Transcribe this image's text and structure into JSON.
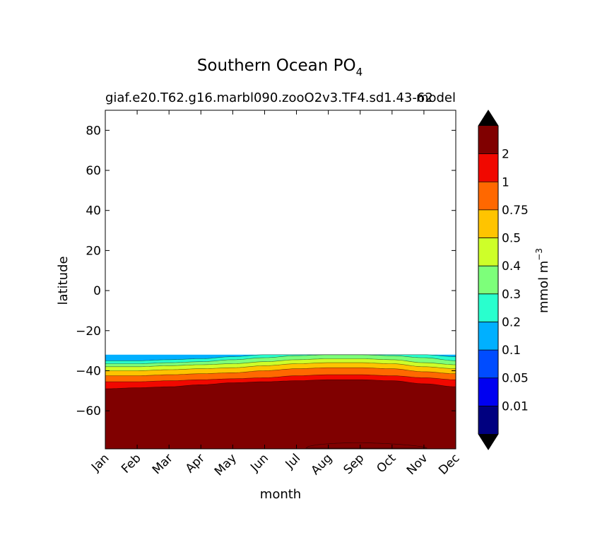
{
  "chart_data": {
    "type": "heatmap",
    "title": "Southern Ocean PO",
    "title_subscript": "4",
    "subtitle_left": "giaf.e20.T62.g16.marbl090.zooO2v3.TF4.sd1.43-62",
    "subtitle_right": "model",
    "xlabel": "month",
    "ylabel": "latitude",
    "x_categories": [
      "Jan",
      "Feb",
      "Mar",
      "Apr",
      "May",
      "Jun",
      "Jul",
      "Aug",
      "Sep",
      "Oct",
      "Nov",
      "Dec"
    ],
    "ylim": [
      -79,
      90
    ],
    "yticks": [
      80,
      60,
      40,
      20,
      0,
      -20,
      -40,
      -60
    ],
    "ytick_labels": [
      "80",
      "60",
      "40",
      "20",
      "0",
      "−20",
      "−40",
      "−60"
    ],
    "data_ylim": [
      -79,
      -32
    ],
    "colorbar": {
      "label": "mmol m",
      "label_superscript": "−3",
      "levels": [
        0,
        0.01,
        0.05,
        0.1,
        0.2,
        0.3,
        0.4,
        0.5,
        0.75,
        1,
        2,
        3
      ],
      "tick_labels": [
        "0.01",
        "0.05",
        "0.1",
        "0.2",
        "0.3",
        "0.4",
        "0.5",
        "0.75",
        "1",
        "2"
      ],
      "colors": [
        "#000080",
        "#0000f1",
        "#004cff",
        "#00b0ff",
        "#29ffce",
        "#7dff7a",
        "#ceff29",
        "#ffc400",
        "#ff6800",
        "#f10800",
        "#800000"
      ],
      "extend_low_color": "#000000",
      "extend_high_color": "#000000"
    },
    "contour_boundaries": [
      {
        "level": 0.2,
        "lat_by_month": [
          -35.0,
          -35.0,
          -34.5,
          -34.0,
          -33.0,
          -32.0,
          -32.0,
          -32.0,
          -32.0,
          -32.0,
          -32.0,
          -33.0
        ]
      },
      {
        "level": 0.3,
        "lat_by_month": [
          -36.5,
          -36.5,
          -36.0,
          -35.5,
          -34.5,
          -33.5,
          -32.5,
          -32.0,
          -32.0,
          -32.5,
          -33.5,
          -35.0
        ]
      },
      {
        "level": 0.4,
        "lat_by_month": [
          -38.0,
          -38.0,
          -37.5,
          -37.0,
          -36.5,
          -35.5,
          -34.5,
          -34.0,
          -34.0,
          -34.5,
          -36.0,
          -37.0
        ]
      },
      {
        "level": 0.5,
        "lat_by_month": [
          -40.0,
          -40.0,
          -39.5,
          -39.0,
          -38.5,
          -37.5,
          -36.5,
          -36.0,
          -36.0,
          -36.5,
          -38.0,
          -39.0
        ]
      },
      {
        "level": 0.75,
        "lat_by_month": [
          -42.5,
          -42.5,
          -42.0,
          -41.5,
          -41.0,
          -40.0,
          -39.0,
          -38.5,
          -38.5,
          -39.0,
          -40.5,
          -41.5
        ]
      },
      {
        "level": 1,
        "lat_by_month": [
          -45.5,
          -45.5,
          -45.0,
          -44.5,
          -44.0,
          -43.5,
          -42.5,
          -42.0,
          -42.0,
          -42.5,
          -43.5,
          -44.5
        ]
      },
      {
        "level": 2,
        "lat_by_month": [
          -49.0,
          -48.5,
          -48.0,
          -47.0,
          -46.0,
          -45.5,
          -45.0,
          -44.5,
          -44.5,
          -45.0,
          -46.5,
          -48.0
        ]
      }
    ]
  }
}
